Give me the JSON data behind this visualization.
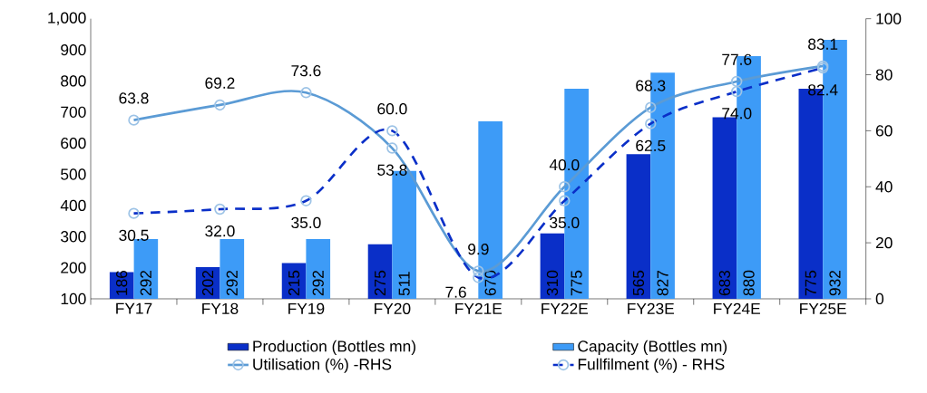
{
  "chart_data": {
    "type": "bar",
    "categories": [
      "FY17",
      "FY18",
      "FY19",
      "FY20",
      "FY21E",
      "FY22E",
      "FY23E",
      "FY24E",
      "FY25E"
    ],
    "series": [
      {
        "name": "Production (Bottles mn)",
        "color": "#0a2fc8",
        "values": [
          186,
          202,
          215,
          275,
          null,
          310,
          565,
          683,
          775
        ]
      },
      {
        "name": "Capacity (Bottles mn)",
        "color": "#3d9bf7",
        "values": [
          292,
          292,
          292,
          511,
          670,
          775,
          827,
          880,
          932
        ]
      },
      {
        "name": "Utilisation (%) -RHS",
        "type": "line",
        "axis": "y2",
        "color": "#5b9bd5",
        "marker": "circle",
        "line_style": "solid",
        "values": [
          63.8,
          69.2,
          73.6,
          53.8,
          9.9,
          40.0,
          68.3,
          77.6,
          83.1
        ],
        "value_labels": [
          "63.8",
          "69.2",
          "73.6",
          "53.8",
          "9.9",
          "40.0",
          "68.3",
          "77.6",
          "83.1"
        ]
      },
      {
        "name": "Fullfilment (%) - RHS",
        "type": "line",
        "axis": "y2",
        "color": "#0a2fc8",
        "marker": "circle",
        "line_style": "dashed",
        "values": [
          30.5,
          32.0,
          35.0,
          60.0,
          7.6,
          35.0,
          62.5,
          74.0,
          82.4
        ],
        "value_labels": [
          "30.5",
          "32.0",
          "35.0",
          "60.0",
          "7.6",
          "35.0",
          "62.5",
          "74.0",
          "82.4"
        ]
      }
    ],
    "ylim": [
      100,
      1000
    ],
    "yticks": [
      100,
      200,
      300,
      400,
      500,
      600,
      700,
      800,
      900,
      {
        "value": 1000,
        "label": "1,000"
      }
    ],
    "y2lim": [
      0,
      100
    ],
    "y2ticks": [
      0,
      20,
      40,
      60,
      80,
      100
    ],
    "data_labels": true,
    "legend": "bottom",
    "grid": false
  }
}
